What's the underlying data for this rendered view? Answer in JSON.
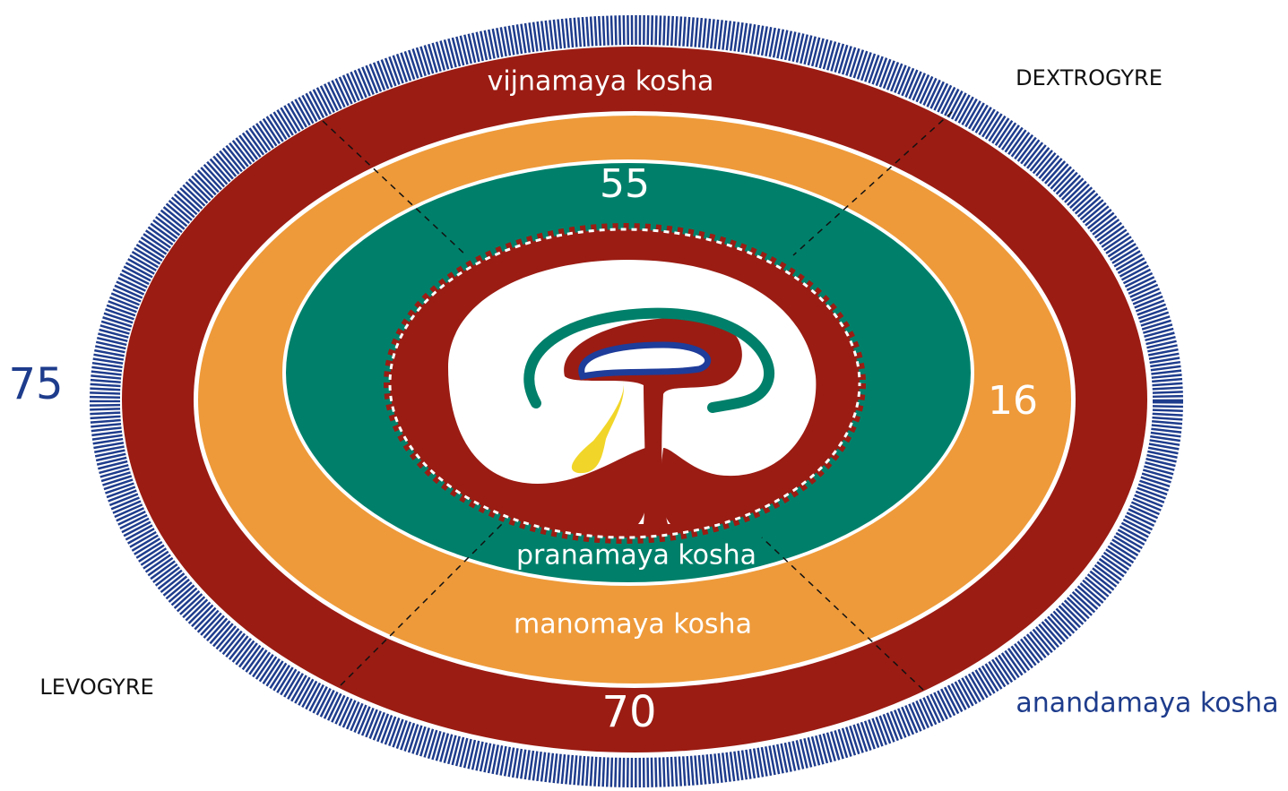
{
  "labels": {
    "vijnamaya": "vijnamaya kosha",
    "dextrogyre": "DEXTROGYRE",
    "top_number": "55",
    "left_number": "75",
    "right_number": "16",
    "pranamaya": "pranamaya kosha",
    "manomaya": "manomaya kosha",
    "levogyre": "LEVOGYRE",
    "bottom_number": "70",
    "anandamaya": "anandamaya kosha"
  }
}
